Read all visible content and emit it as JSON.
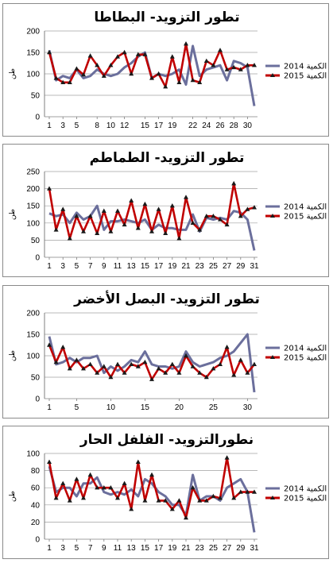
{
  "colors": {
    "series_2014": "#6b6f9c",
    "series_2015": "#c00000",
    "grid": "#a0a0a0",
    "axis": "#7f7f7f"
  },
  "chart_data": [
    {
      "type": "line",
      "title": "تطور التزويد- البطاطا",
      "ylabel": "طن",
      "ylim": [
        0,
        200
      ],
      "yticks": [
        0,
        50,
        100,
        150,
        200
      ],
      "xtick_labels": [
        "1",
        "3",
        "5",
        "8",
        "10",
        "12",
        "15",
        "17",
        "19",
        "22",
        "24",
        "26",
        "28",
        "30"
      ],
      "xtick_positions": [
        1,
        3,
        5,
        8,
        10,
        12,
        15,
        17,
        19,
        22,
        24,
        26,
        28,
        30
      ],
      "x": [
        1,
        2,
        3,
        4,
        5,
        6,
        7,
        8,
        9,
        10,
        11,
        12,
        13,
        14,
        15,
        16,
        17,
        18,
        19,
        20,
        21,
        22,
        23,
        24,
        25,
        26,
        27,
        28,
        29,
        30,
        31
      ],
      "series": [
        {
          "name": "2014 الكمية",
          "marker": "none",
          "values": [
            155,
            85,
            95,
            90,
            110,
            90,
            95,
            110,
            100,
            95,
            100,
            115,
            125,
            140,
            150,
            90,
            100,
            95,
            100,
            110,
            75,
            165,
            95,
            110,
            115,
            120,
            85,
            130,
            125,
            115,
            25
          ]
        },
        {
          "name": "2015 الكمية",
          "marker": "triangle",
          "values": [
            150,
            90,
            80,
            80,
            112,
            98,
            142,
            120,
            95,
            120,
            140,
            150,
            100,
            145,
            145,
            90,
            100,
            70,
            140,
            80,
            170,
            85,
            80,
            130,
            120,
            155,
            110,
            115,
            110,
            120,
            120
          ]
        }
      ]
    },
    {
      "type": "line",
      "title": "تطور التزويد- الطماطم",
      "ylabel": "طن",
      "ylim": [
        0,
        250
      ],
      "yticks": [
        0,
        50,
        100,
        150,
        200,
        250
      ],
      "xtick_labels": [
        "1",
        "3",
        "5",
        "7",
        "9",
        "11",
        "13",
        "15",
        "17",
        "19",
        "21",
        "23",
        "25",
        "27",
        "29",
        "31"
      ],
      "xtick_positions": [
        1,
        3,
        5,
        7,
        9,
        11,
        13,
        15,
        17,
        19,
        21,
        23,
        25,
        27,
        29,
        31
      ],
      "x": [
        1,
        2,
        3,
        4,
        5,
        6,
        7,
        8,
        9,
        10,
        11,
        12,
        13,
        14,
        15,
        16,
        17,
        18,
        19,
        20,
        21,
        22,
        23,
        24,
        25,
        26,
        27,
        28,
        29,
        30,
        31
      ],
      "series": [
        {
          "name": "2014 الكمية",
          "marker": "none",
          "values": [
            128,
            120,
            125,
            100,
            130,
            110,
            120,
            150,
            80,
            105,
            105,
            110,
            105,
            100,
            110,
            80,
            95,
            85,
            85,
            80,
            80,
            125,
            75,
            115,
            110,
            115,
            110,
            135,
            130,
            110,
            20
          ]
        },
        {
          "name": "2015 الكمية",
          "marker": "triangle",
          "values": [
            200,
            80,
            140,
            55,
            120,
            75,
            120,
            70,
            135,
            75,
            135,
            95,
            165,
            85,
            155,
            75,
            140,
            70,
            150,
            55,
            175,
            100,
            80,
            120,
            120,
            110,
            95,
            215,
            120,
            140,
            145
          ]
        }
      ]
    },
    {
      "type": "line",
      "title": "تطور التزويد- البصل الأخضر",
      "ylabel": "طن",
      "ylim": [
        0,
        200
      ],
      "yticks": [
        0,
        50,
        100,
        150,
        200
      ],
      "xtick_labels": [
        "1",
        "5",
        "10",
        "15",
        "20",
        "25",
        "30"
      ],
      "xtick_positions": [
        1,
        5,
        10,
        15,
        20,
        25,
        30
      ],
      "x": [
        1,
        2,
        3,
        4,
        5,
        6,
        7,
        8,
        9,
        10,
        11,
        12,
        13,
        14,
        15,
        16,
        17,
        18,
        19,
        20,
        21,
        22,
        23,
        24,
        25,
        26,
        27,
        28,
        29,
        30,
        31
      ],
      "series": [
        {
          "name": "2014 الكمية",
          "marker": "none",
          "values": [
            145,
            80,
            85,
            95,
            85,
            95,
            95,
            100,
            60,
            75,
            65,
            75,
            90,
            85,
            110,
            80,
            75,
            75,
            70,
            75,
            110,
            85,
            75,
            80,
            85,
            95,
            100,
            110,
            130,
            150,
            15
          ]
        },
        {
          "name": "2015 الكمية",
          "marker": "triangle",
          "values": [
            125,
            85,
            120,
            70,
            90,
            70,
            80,
            60,
            75,
            50,
            80,
            60,
            80,
            75,
            85,
            45,
            70,
            60,
            80,
            60,
            100,
            75,
            60,
            50,
            70,
            80,
            120,
            55,
            90,
            60,
            80
          ]
        }
      ]
    },
    {
      "type": "line",
      "title": "نطورالتزويد- الفلفل الحار",
      "ylabel": "طن",
      "ylim": [
        0,
        100
      ],
      "yticks": [
        0,
        20,
        40,
        60,
        80,
        100
      ],
      "xtick_labels": [
        "1",
        "3",
        "5",
        "7",
        "9",
        "11",
        "13",
        "15",
        "17",
        "19",
        "21",
        "23",
        "25",
        "27",
        "29",
        "31"
      ],
      "xtick_positions": [
        1,
        3,
        5,
        7,
        9,
        11,
        13,
        15,
        17,
        19,
        21,
        23,
        25,
        27,
        29,
        31
      ],
      "x": [
        1,
        2,
        3,
        4,
        5,
        6,
        7,
        8,
        9,
        10,
        11,
        12,
        13,
        14,
        15,
        16,
        17,
        18,
        19,
        20,
        21,
        22,
        23,
        24,
        25,
        26,
        27,
        28,
        29,
        30,
        31
      ],
      "series": [
        {
          "name": "2014 الكمية",
          "marker": "none",
          "values": [
            85,
            55,
            60,
            60,
            50,
            65,
            65,
            72,
            55,
            52,
            55,
            52,
            58,
            50,
            70,
            65,
            55,
            50,
            40,
            40,
            28,
            75,
            45,
            50,
            50,
            45,
            60,
            65,
            70,
            55,
            8
          ]
        },
        {
          "name": "2015 الكمية",
          "marker": "triangle",
          "values": [
            90,
            48,
            65,
            45,
            70,
            48,
            75,
            60,
            60,
            60,
            48,
            65,
            35,
            90,
            45,
            75,
            45,
            45,
            35,
            45,
            25,
            60,
            45,
            45,
            50,
            48,
            95,
            48,
            55,
            55,
            55
          ]
        }
      ]
    }
  ]
}
